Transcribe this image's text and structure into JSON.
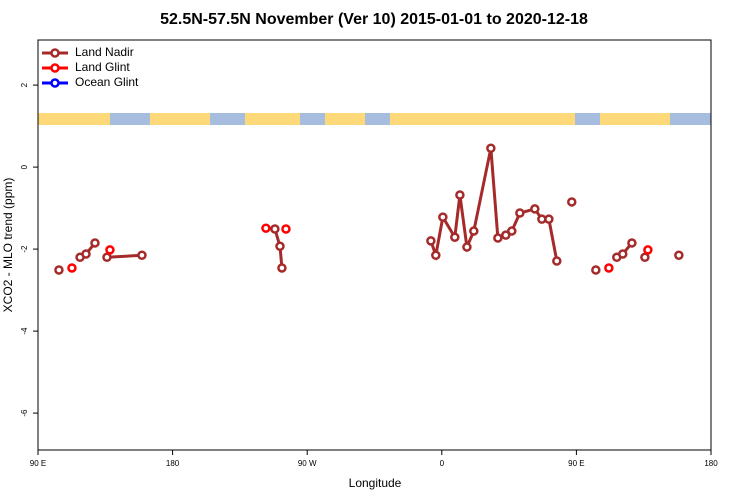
{
  "chart_data": {
    "type": "line",
    "title": "52.5N-57.5N November (Ver 10)   2015-01-01 to 2020-12-18",
    "x_label": "Longitude",
    "y_label": "XCO2 - MLO trend (ppm)",
    "xlim": [
      90,
      540
    ],
    "xticks": [
      {
        "value": 90,
        "label": "90 E"
      },
      {
        "value": 180,
        "label": "180"
      },
      {
        "value": 270,
        "label": "90 W"
      },
      {
        "value": 360,
        "label": "0"
      },
      {
        "value": 450,
        "label": "90 E"
      },
      {
        "value": 540,
        "label": "180"
      }
    ],
    "ylim": [
      -6.9,
      3.1
    ],
    "yticks": [
      -6,
      -4,
      -2,
      0,
      2
    ],
    "legend": "top-left",
    "series": [
      {
        "name": "Land Nadir",
        "color": "#a52a2a",
        "x": [
          104.0,
          null,
          118.1,
          122.1,
          128.1,
          null,
          136.1,
          159.5,
          null,
          248.4,
          251.8,
          253.1,
          null,
          352.7,
          356.0,
          360.7,
          368.7,
          372.1,
          376.8,
          381.4,
          392.8,
          397.5,
          402.8,
          406.8,
          412.2,
          422.2,
          426.9,
          431.6,
          436.9,
          null,
          446.9,
          null,
          463.0,
          null,
          477.0,
          481.0,
          487.1,
          null,
          495.8,
          null,
          518.5
        ],
        "values": [
          -2.51,
          null,
          -2.2,
          -2.12,
          -1.85,
          null,
          -2.2,
          -2.15,
          null,
          -1.51,
          -1.93,
          -2.46,
          null,
          -1.8,
          -2.15,
          -1.22,
          -1.71,
          -0.68,
          -1.95,
          -1.56,
          0.46,
          -1.73,
          -1.66,
          -1.56,
          -1.12,
          -1.02,
          -1.27,
          -1.27,
          -2.29,
          null,
          -0.85,
          null,
          -2.51,
          null,
          -2.2,
          -2.12,
          -1.85,
          null,
          -2.2,
          null,
          -2.15
        ]
      },
      {
        "name": "Land Glint",
        "color": "#ff0000",
        "x": [
          112.7,
          null,
          138.1,
          null,
          242.4,
          null,
          255.8,
          null,
          471.7,
          null,
          497.8
        ],
        "values": [
          -2.46,
          null,
          -2.02,
          null,
          -1.49,
          null,
          -1.51,
          null,
          -2.46,
          null,
          -2.02
        ]
      },
      {
        "name": "Ocean Glint",
        "color": "#0000ff",
        "x": [],
        "values": []
      }
    ]
  }
}
